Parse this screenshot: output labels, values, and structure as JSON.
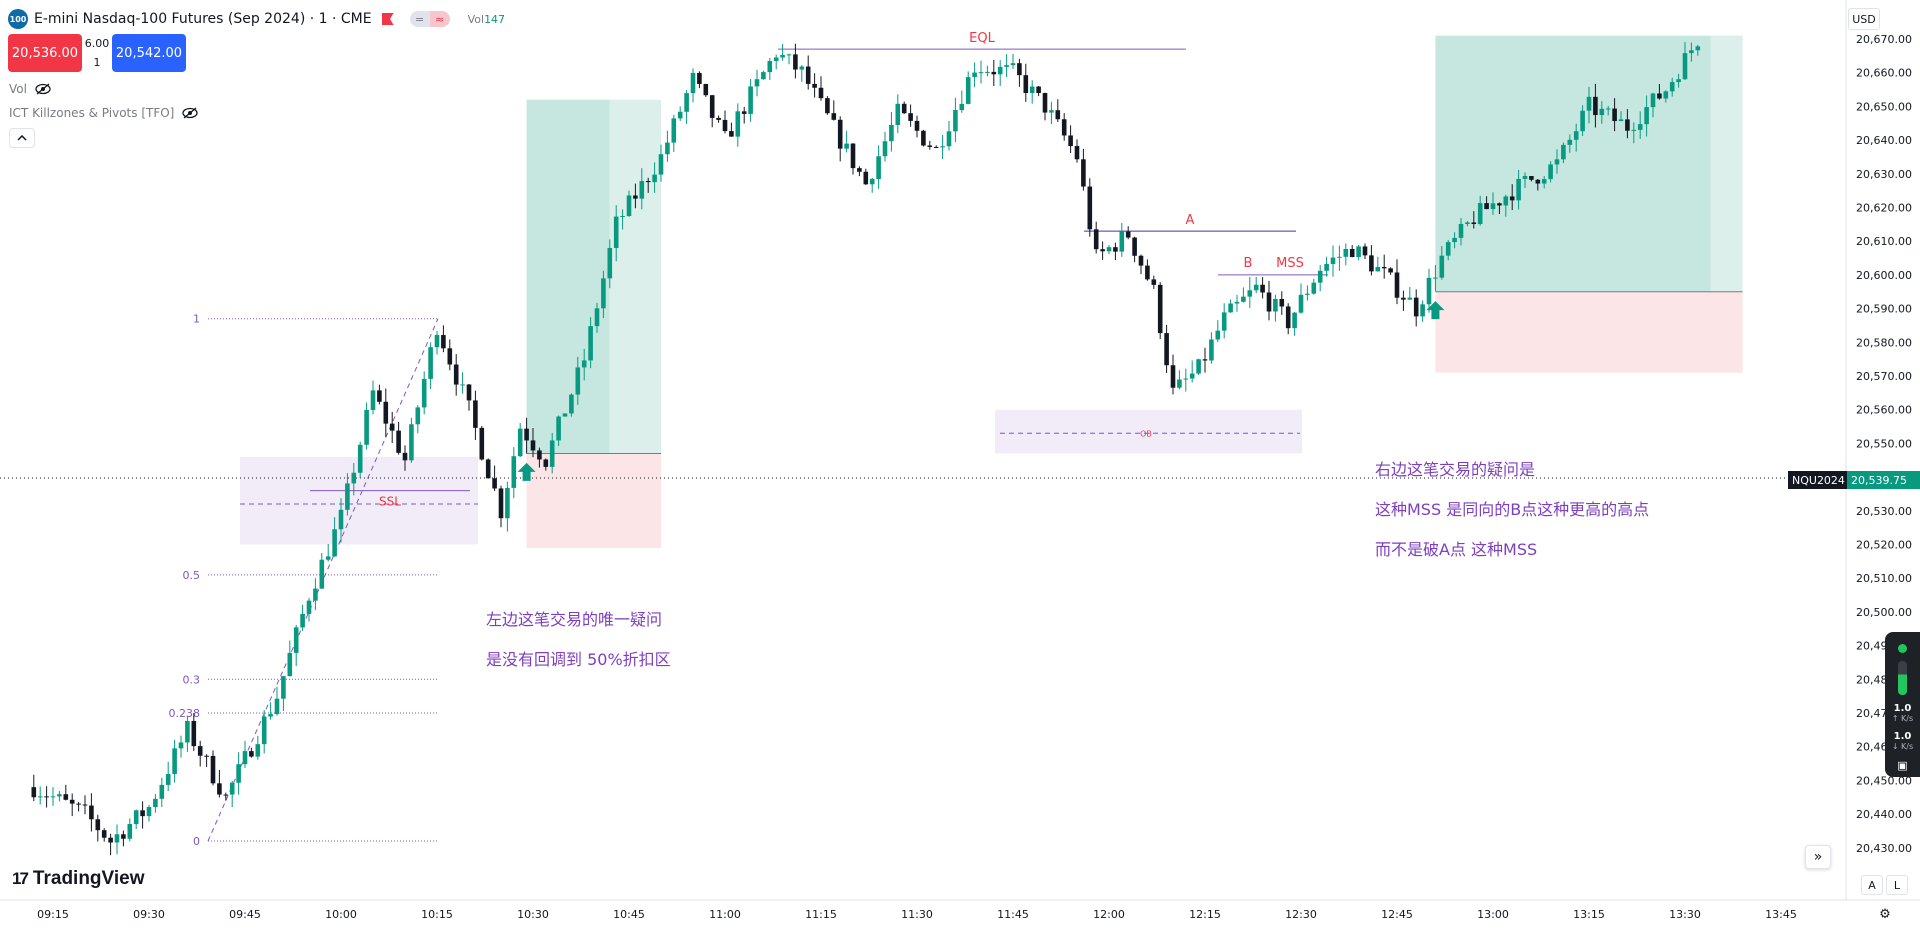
{
  "header": {
    "logo_text": "100",
    "symbol_title": "E-mini Nasdaq-100 Futures (Sep 2024) · 1 · CME",
    "vol_label": "Vol",
    "vol_value": "147",
    "sell_price": "20,536.00",
    "buy_price": "20,542.00",
    "spread_top": "6.00",
    "spread_bottom": "1",
    "indicator_vol": "Vol",
    "indicator_ict": "ICT Killzones & Pivots [TFO]",
    "pill_left": "=",
    "pill_right": "≈"
  },
  "right_axis": {
    "currency": "USD",
    "symbol_tag": "NQU2024",
    "price_tag": "20,539.75"
  },
  "chart_data": {
    "type": "candlestick",
    "x_ticks": [
      "09:15",
      "09:30",
      "09:45",
      "10:00",
      "10:15",
      "10:30",
      "10:45",
      "11:00",
      "11:15",
      "11:30",
      "11:45",
      "12:00",
      "12:15",
      "12:30",
      "12:45",
      "13:00",
      "13:15",
      "13:30",
      "13:45"
    ],
    "y_ticks": [
      "20,670.00",
      "20,660.00",
      "20,650.00",
      "20,640.00",
      "20,630.00",
      "20,620.00",
      "20,610.00",
      "20,600.00",
      "20,590.00",
      "20,580.00",
      "20,570.00",
      "20,560.00",
      "20,550.00",
      "20,540.00",
      "20,530.00",
      "20,520.00",
      "20,510.00",
      "20,500.00",
      "20,490.00",
      "20,480.00",
      "20,470.00",
      "20,460.00",
      "20,450.00",
      "20,440.00",
      "20,430.00"
    ],
    "ylim": [
      20424,
      20677
    ],
    "xlim": [
      "09:12",
      "14:00"
    ],
    "current_price": 20539.75,
    "colors": {
      "up": "#089981",
      "down": "#131722",
      "ema": "#089981",
      "fib": "#7e57c2",
      "label": "#f23645"
    },
    "close_path": [
      [
        "09:12",
        20448
      ],
      [
        "09:20",
        20440
      ],
      [
        "09:24",
        20432
      ],
      [
        "09:30",
        20442
      ],
      [
        "09:36",
        20465
      ],
      [
        "09:42",
        20445
      ],
      [
        "09:50",
        20475
      ],
      [
        "09:55",
        20505
      ],
      [
        "10:00",
        20528
      ],
      [
        "10:05",
        20565
      ],
      [
        "10:10",
        20545
      ],
      [
        "10:15",
        20585
      ],
      [
        "10:20",
        20560
      ],
      [
        "10:25",
        20530
      ],
      [
        "10:28",
        20555
      ],
      [
        "10:32",
        20545
      ],
      [
        "10:38",
        20575
      ],
      [
        "10:43",
        20615
      ],
      [
        "10:50",
        20635
      ],
      [
        "10:55",
        20658
      ],
      [
        "11:00",
        20640
      ],
      [
        "11:03",
        20650
      ],
      [
        "11:08",
        20666
      ],
      [
        "11:12",
        20660
      ],
      [
        "11:18",
        20640
      ],
      [
        "11:22",
        20627
      ],
      [
        "11:27",
        20648
      ],
      [
        "11:33",
        20637
      ],
      [
        "11:39",
        20662
      ],
      [
        "11:45",
        20660
      ],
      [
        "11:50",
        20650
      ],
      [
        "11:55",
        20635
      ],
      [
        "11:58",
        20605
      ],
      [
        "12:03",
        20612
      ],
      [
        "12:07",
        20595
      ],
      [
        "12:10",
        20565
      ],
      [
        "12:14",
        20572
      ],
      [
        "12:18",
        20587
      ],
      [
        "12:23",
        20596
      ],
      [
        "12:28",
        20586
      ],
      [
        "12:33",
        20602
      ],
      [
        "12:38",
        20608
      ],
      [
        "12:43",
        20600
      ],
      [
        "12:48",
        20590
      ],
      [
        "12:52",
        20605
      ],
      [
        "12:57",
        20617
      ],
      [
        "13:03",
        20625
      ],
      [
        "13:10",
        20633
      ],
      [
        "13:15",
        20650
      ],
      [
        "13:21",
        20644
      ],
      [
        "13:27",
        20655
      ],
      [
        "13:32",
        20670
      ]
    ]
  },
  "annotations": {
    "eql": "EQL",
    "ssl": "SSL",
    "label_a": "A",
    "label_b": "B",
    "mss": "MSS",
    "ob": "OB",
    "fib_levels": [
      "1",
      "0.5",
      "0.3",
      "0.238",
      "0"
    ],
    "fib_values": [
      20587,
      20511,
      20480,
      20470,
      20432
    ],
    "eql_price": 20667,
    "a_price": 20613,
    "b_price": 20600,
    "ssl_price": 20536,
    "ob_mid": 20553,
    "pos1": {
      "start": "10:29",
      "end": "10:50",
      "split": "10:42",
      "entry": 20547,
      "target": 20652,
      "stop": 20519
    },
    "pos2": {
      "start": "12:51",
      "end": "13:39",
      "split": "13:34",
      "entry": 20595,
      "target": 20671,
      "stop": 20571
    }
  },
  "notes": {
    "left_line1": "左边这笔交易的唯一疑问",
    "left_line2": "是没有回调到 50%折扣区",
    "right_line1": "右边这笔交易的疑问是",
    "right_line2": "这种MSS 是同向的B点这种更高的高点",
    "right_line3": "而不是破A点 这种MSS"
  },
  "branding": {
    "logo": "TradingView"
  },
  "corner": {
    "a_btn": "A",
    "l_btn": "L",
    "goto": "»"
  },
  "net_widget": {
    "up_val": "1.0",
    "up_unit": "↑ K/s",
    "down_val": "1.0",
    "down_unit": "↓ K/s"
  }
}
